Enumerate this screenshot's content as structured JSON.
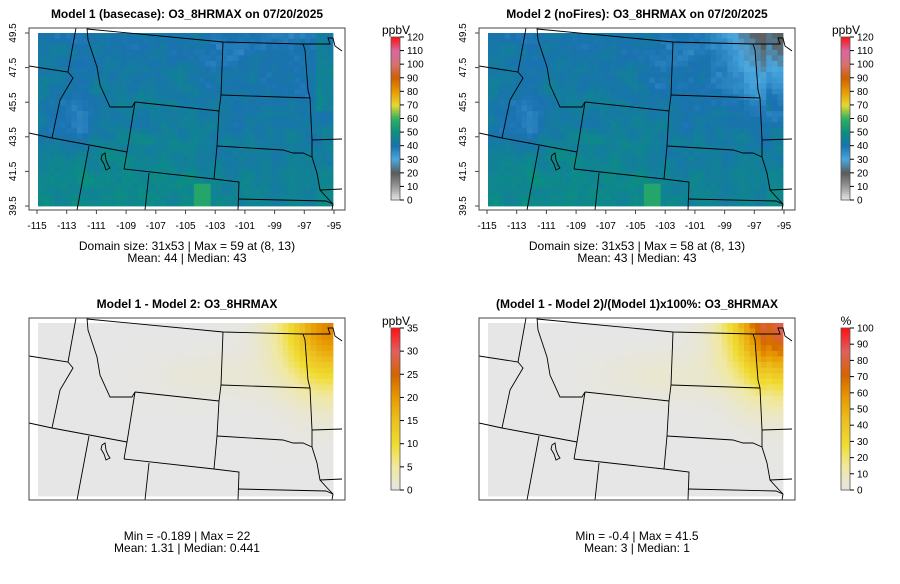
{
  "chart_data": [
    {
      "type": "heatmap",
      "title": "Model 1 (basecase): O3_8HRMAX on 07/20/2025",
      "colorbar_label": "ppbV",
      "colorbar_ticks": [
        "0",
        "10",
        "20",
        "30",
        "40",
        "50",
        "60",
        "70",
        "80",
        "90",
        "100",
        "110",
        "120"
      ],
      "colorbar_range": [
        0,
        120
      ],
      "x_ticks": [
        "-115",
        "-113",
        "-111",
        "-109",
        "-107",
        "-105",
        "-103",
        "-101",
        "-99",
        "-97",
        "-95"
      ],
      "y_ticks": [
        "39.5",
        "41.5",
        "43.5",
        "45.5",
        "47.5",
        "49.5"
      ],
      "stats_line1": "Domain size: 31x53 | Max = 59 at (8, 13)",
      "stats_line2": "Mean: 44 |  Median: 43",
      "field": "model1"
    },
    {
      "type": "heatmap",
      "title": "Model 2 (noFires): O3_8HRMAX on 07/20/2025",
      "colorbar_label": "ppbV",
      "colorbar_ticks": [
        "0",
        "10",
        "20",
        "30",
        "40",
        "50",
        "60",
        "70",
        "80",
        "90",
        "100",
        "110",
        "120"
      ],
      "colorbar_range": [
        0,
        120
      ],
      "x_ticks": [
        "-115",
        "-113",
        "-111",
        "-109",
        "-107",
        "-105",
        "-103",
        "-101",
        "-99",
        "-97",
        "-95"
      ],
      "y_ticks": [
        "39.5",
        "41.5",
        "43.5",
        "45.5",
        "47.5",
        "49.5"
      ],
      "stats_line1": "Domain size: 31x53 | Max = 58 at (8, 13)",
      "stats_line2": "Mean: 43 |  Median: 43",
      "field": "model2"
    },
    {
      "type": "heatmap",
      "title": "Model 1 - Model 2: O3_8HRMAX",
      "colorbar_label": "ppbV",
      "colorbar_ticks": [
        "0",
        "5",
        "10",
        "15",
        "20",
        "25",
        "30",
        "35"
      ],
      "colorbar_range": [
        0,
        35
      ],
      "stats_line1": "Min = -0.189 | Max = 22",
      "stats_line2": "Mean: 1.31 |  Median: 0.441",
      "field": "diff"
    },
    {
      "type": "heatmap",
      "title": "(Model 1 - Model 2)/(Model 1)x100%: O3_8HRMAX",
      "colorbar_label": "%",
      "colorbar_ticks": [
        "0",
        "10",
        "20",
        "30",
        "40",
        "50",
        "60",
        "70",
        "80",
        "90",
        "100"
      ],
      "colorbar_range": [
        0,
        100
      ],
      "stats_line1": "Min = -0.4 | Max = 41.5",
      "stats_line2": "Mean: 3 |  Median: 1",
      "field": "pct"
    }
  ],
  "colors": {
    "ozone_scale": [
      "#e8e8e8",
      "#9a9a9a",
      "#5a5a5a",
      "#4aa8e0",
      "#1a72b0",
      "#0a8f80",
      "#2fb060",
      "#e8d830",
      "#e89a00",
      "#d06000",
      "#d87070",
      "#d868a0",
      "#ff1010"
    ],
    "diff_scale": [
      "#e6e6e6",
      "#f0e8a0",
      "#f0dc30",
      "#ecc020",
      "#e89a00",
      "#d46400",
      "#e06060",
      "#ff1010"
    ]
  }
}
